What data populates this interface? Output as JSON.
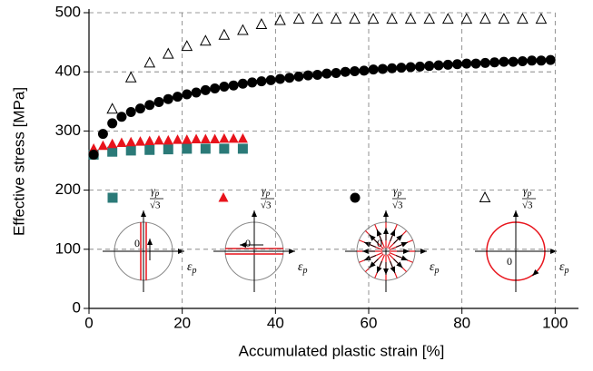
{
  "chart_data": {
    "type": "scatter",
    "xlabel": "Accumulated plastic strain [%]",
    "ylabel": "Effective stress [MPa]",
    "xlim": [
      0,
      105
    ],
    "ylim": [
      0,
      500
    ],
    "xticks": [
      0,
      20,
      40,
      60,
      80,
      100
    ],
    "yticks": [
      0,
      100,
      200,
      300,
      400,
      500
    ],
    "grid": true,
    "series": [
      {
        "marker": "square",
        "color": "#2b7a78",
        "x": [
          1,
          5,
          9,
          13,
          17,
          21,
          25,
          29,
          33
        ],
        "values": [
          260,
          265,
          267,
          268,
          269,
          270,
          270,
          270,
          270
        ]
      },
      {
        "marker": "triangle",
        "color": "#e8141c",
        "x": [
          1,
          3,
          5,
          7,
          9,
          11,
          13,
          15,
          17,
          19,
          21,
          23,
          25,
          27,
          29,
          31,
          33
        ],
        "values": [
          270,
          275,
          278,
          280,
          281,
          282,
          283,
          284,
          284,
          285,
          285,
          286,
          286,
          286,
          287,
          287,
          287
        ]
      },
      {
        "marker": "circle",
        "color": "#000000",
        "x": [
          1,
          3,
          5,
          7,
          9,
          11,
          13,
          15,
          17,
          19,
          21,
          23,
          25,
          27,
          29,
          31,
          33,
          35,
          37,
          39,
          41,
          43,
          45,
          47,
          49,
          51,
          53,
          55,
          57,
          59,
          61,
          63,
          65,
          67,
          69,
          71,
          73,
          75,
          77,
          79,
          81,
          83,
          85,
          87,
          89,
          91,
          93,
          95,
          97,
          99
        ],
        "values": [
          260,
          295,
          313,
          324,
          332,
          338,
          344,
          349,
          354,
          358,
          362,
          365,
          369,
          372,
          375,
          377,
          380,
          382,
          384,
          386,
          388,
          390,
          392,
          394,
          395,
          397,
          398,
          400,
          401,
          402,
          404,
          405,
          406,
          407,
          408,
          409,
          410,
          411,
          412,
          413,
          414,
          414,
          415,
          416,
          417,
          417,
          418,
          419,
          419,
          420
        ]
      },
      {
        "marker": "triangle-open",
        "color": "#000000",
        "x": [
          5,
          9,
          13,
          17,
          21,
          25,
          29,
          33,
          37,
          41,
          45,
          49,
          53,
          57,
          61,
          65,
          69,
          73,
          77,
          81,
          85,
          89,
          93,
          97
        ],
        "values": [
          337,
          390,
          415,
          430,
          443,
          452,
          462,
          470,
          480,
          487,
          489,
          489,
          489,
          489,
          489,
          489,
          489,
          489,
          489,
          489,
          489,
          489,
          489,
          489
        ]
      }
    ],
    "inset_labels": {
      "y": "γ",
      "y_sub": "p",
      "sqrt": "√3",
      "x": "ε",
      "x_sub": "p",
      "origin": "0"
    }
  }
}
